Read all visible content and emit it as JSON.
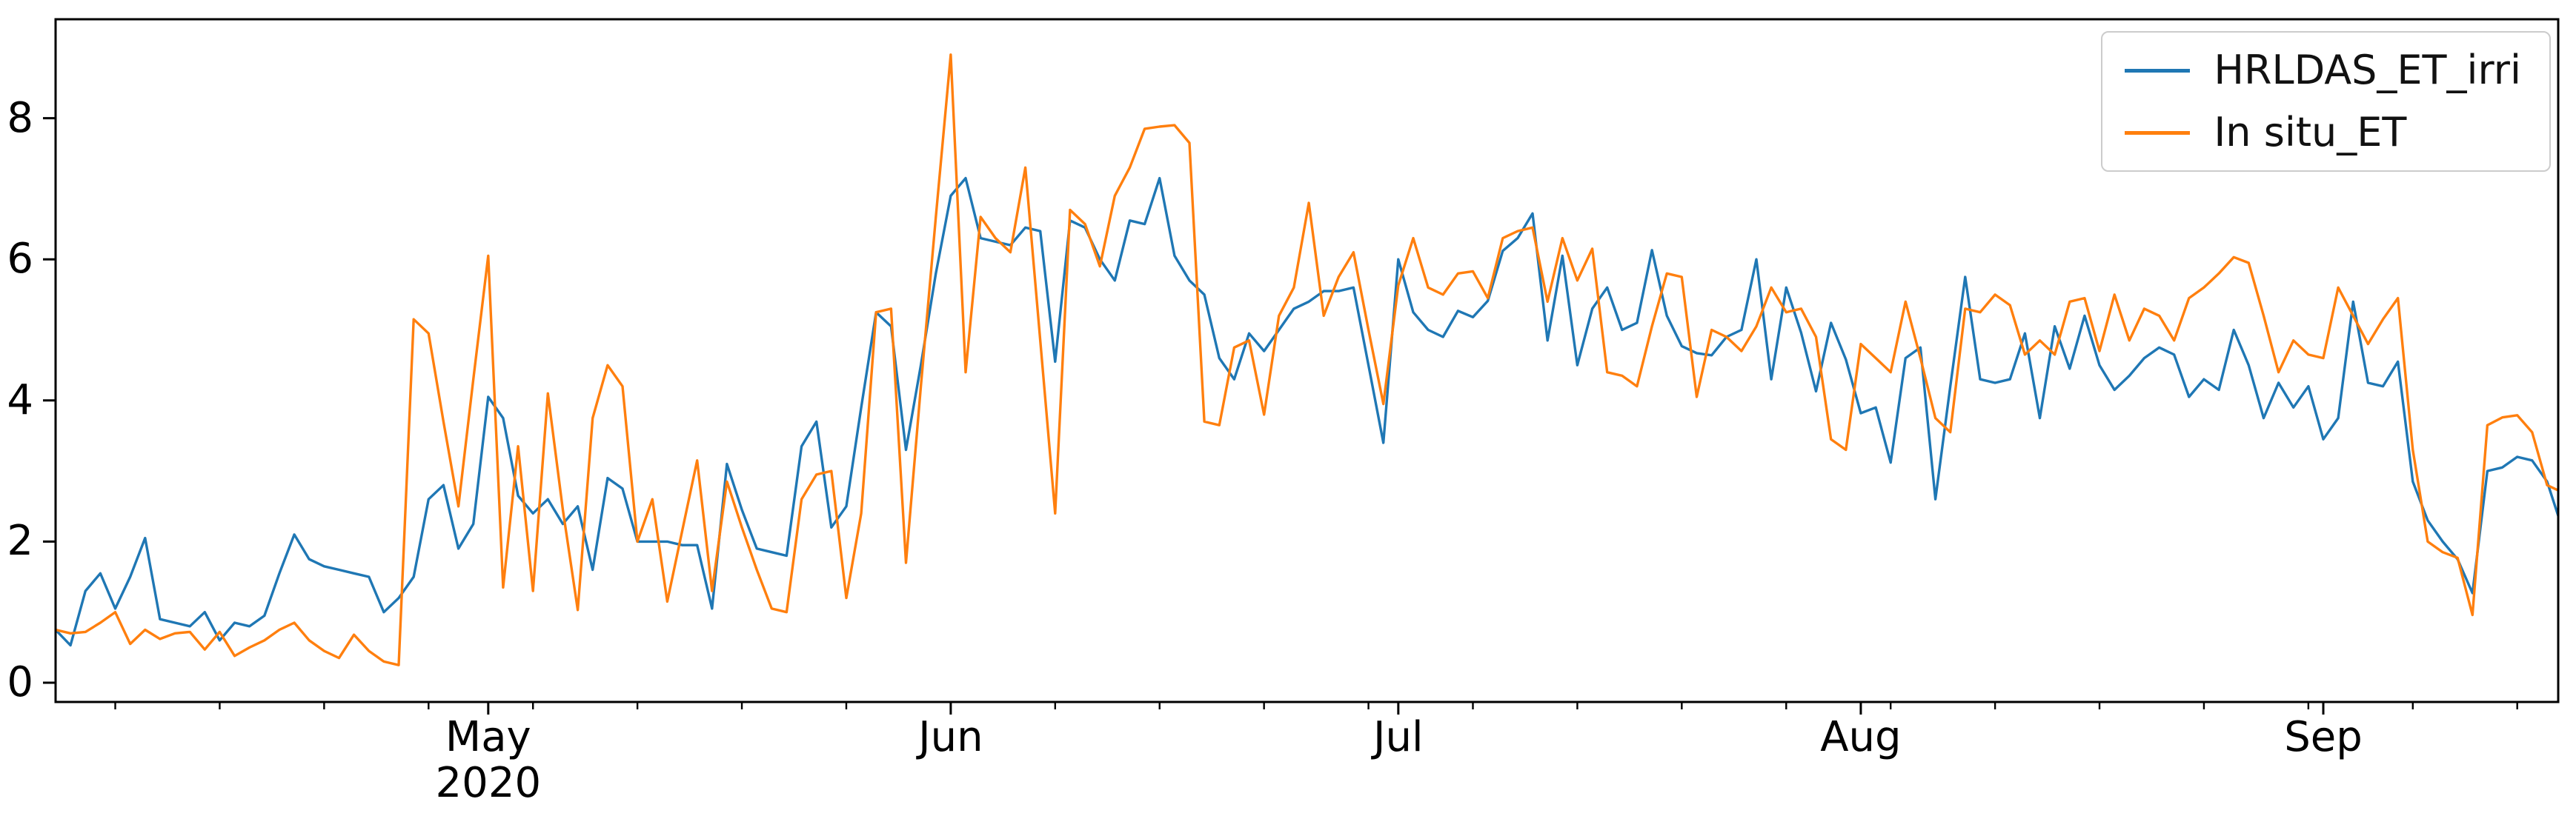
{
  "figure": {
    "background": "#ffffff",
    "axis_color": "#000000",
    "text_color": "#000000"
  },
  "legend": {
    "entries": [
      {
        "label": "HRLDAS_ET_irri",
        "color": "#1f77b4"
      },
      {
        "label": "In situ_ET",
        "color": "#ff7f0e"
      }
    ]
  },
  "chart_data": {
    "type": "line",
    "title": "",
    "xlabel": "",
    "ylabel": "",
    "x_frequency": "daily",
    "x_start_date": "2020-04-02",
    "x_end_date": "2020-09-17",
    "x_tick_labels": [
      "May",
      "Jun",
      "Jul",
      "Aug",
      "Sep"
    ],
    "x_year_label": "2020",
    "x_minor_tick_weekday": "Monday",
    "y_ticks": [
      0,
      2,
      4,
      6,
      8
    ],
    "ylim": [
      -0.3,
      9.4
    ],
    "grid": false,
    "legend_position": "upper right",
    "series": [
      {
        "name": "HRLDAS_ET_irri",
        "color": "#1f77b4",
        "values": [
          0.75,
          0.53,
          1.3,
          1.55,
          1.05,
          1.5,
          2.05,
          0.9,
          0.85,
          0.8,
          1.0,
          0.6,
          0.85,
          0.8,
          0.95,
          1.55,
          2.1,
          1.75,
          1.65,
          1.6,
          1.55,
          1.5,
          1.0,
          1.2,
          1.5,
          2.6,
          2.8,
          1.9,
          2.25,
          4.05,
          3.75,
          2.65,
          2.4,
          2.6,
          2.25,
          2.5,
          1.6,
          2.9,
          2.75,
          2.0,
          2.0,
          2.0,
          1.95,
          1.95,
          1.05,
          3.1,
          2.45,
          1.9,
          1.85,
          1.8,
          3.35,
          3.7,
          2.2,
          2.5,
          3.9,
          5.25,
          5.05,
          3.3,
          4.5,
          5.8,
          6.9,
          7.15,
          6.3,
          6.25,
          6.2,
          6.45,
          6.4,
          4.55,
          6.55,
          6.45,
          6.0,
          5.7,
          6.55,
          6.5,
          7.15,
          6.05,
          5.7,
          5.5,
          4.6,
          4.3,
          4.95,
          4.7,
          5.0,
          5.3,
          5.4,
          5.55,
          5.55,
          5.6,
          4.5,
          3.4,
          6.0,
          5.25,
          5.0,
          4.9,
          5.27,
          5.18,
          5.41,
          6.12,
          6.3,
          6.65,
          4.85,
          6.05,
          4.5,
          5.3,
          5.6,
          5.0,
          5.1,
          6.13,
          5.2,
          4.77,
          4.67,
          4.64,
          4.9,
          5.0,
          6.0,
          4.3,
          5.6,
          4.96,
          4.13,
          5.1,
          4.58,
          3.82,
          3.9,
          3.12,
          4.6,
          4.75,
          2.6,
          4.2,
          5.75,
          4.3,
          4.25,
          4.3,
          4.95,
          3.75,
          5.05,
          4.45,
          5.2,
          4.5,
          4.15,
          4.35,
          4.6,
          4.75,
          4.65,
          4.05,
          4.3,
          4.15,
          5.0,
          4.5,
          3.75,
          4.25,
          3.9,
          4.2,
          3.45,
          3.75,
          5.4,
          4.25,
          4.2,
          4.55,
          2.85,
          2.3,
          2.0,
          1.75,
          1.27,
          3.0,
          3.05,
          3.2,
          3.15,
          2.85,
          2.2
        ]
      },
      {
        "name": "In situ_ET",
        "color": "#ff7f0e",
        "values": [
          0.75,
          0.7,
          0.72,
          0.85,
          1.0,
          0.55,
          0.75,
          0.62,
          0.7,
          0.72,
          0.47,
          0.72,
          0.38,
          0.5,
          0.6,
          0.75,
          0.85,
          0.6,
          0.45,
          0.35,
          0.68,
          0.45,
          0.3,
          0.25,
          5.15,
          4.95,
          3.7,
          2.5,
          4.3,
          6.05,
          1.35,
          3.35,
          1.3,
          4.1,
          2.45,
          1.03,
          3.75,
          4.5,
          4.2,
          2.0,
          2.6,
          1.15,
          2.15,
          3.15,
          1.3,
          2.85,
          2.2,
          1.6,
          1.05,
          1.0,
          2.6,
          2.95,
          3.0,
          1.2,
          2.4,
          5.25,
          5.3,
          1.7,
          4.2,
          6.6,
          8.9,
          4.4,
          6.6,
          6.3,
          6.1,
          7.3,
          4.85,
          2.4,
          6.7,
          6.5,
          5.9,
          6.9,
          7.3,
          7.85,
          7.88,
          7.9,
          7.65,
          3.7,
          3.65,
          4.75,
          4.85,
          3.8,
          5.2,
          5.6,
          6.8,
          5.2,
          5.75,
          6.1,
          5.0,
          3.95,
          5.63,
          6.3,
          5.6,
          5.5,
          5.8,
          5.83,
          5.45,
          6.3,
          6.4,
          6.45,
          5.4,
          6.3,
          5.7,
          6.15,
          4.4,
          4.35,
          4.2,
          5.05,
          5.8,
          5.75,
          4.05,
          5.0,
          4.9,
          4.7,
          5.05,
          5.6,
          5.25,
          5.3,
          4.9,
          3.45,
          3.3,
          4.8,
          4.6,
          4.4,
          5.4,
          4.6,
          3.75,
          3.55,
          5.3,
          5.25,
          5.5,
          5.35,
          4.65,
          4.85,
          4.65,
          5.4,
          5.45,
          4.7,
          5.5,
          4.85,
          5.3,
          5.2,
          4.85,
          5.45,
          5.6,
          5.8,
          6.03,
          5.95,
          5.2,
          4.4,
          4.85,
          4.65,
          4.6,
          5.6,
          5.2,
          4.8,
          5.15,
          5.45,
          3.3,
          2.0,
          1.85,
          1.77,
          0.96,
          3.65,
          3.76,
          3.79,
          3.55,
          2.8,
          2.7
        ]
      }
    ]
  }
}
